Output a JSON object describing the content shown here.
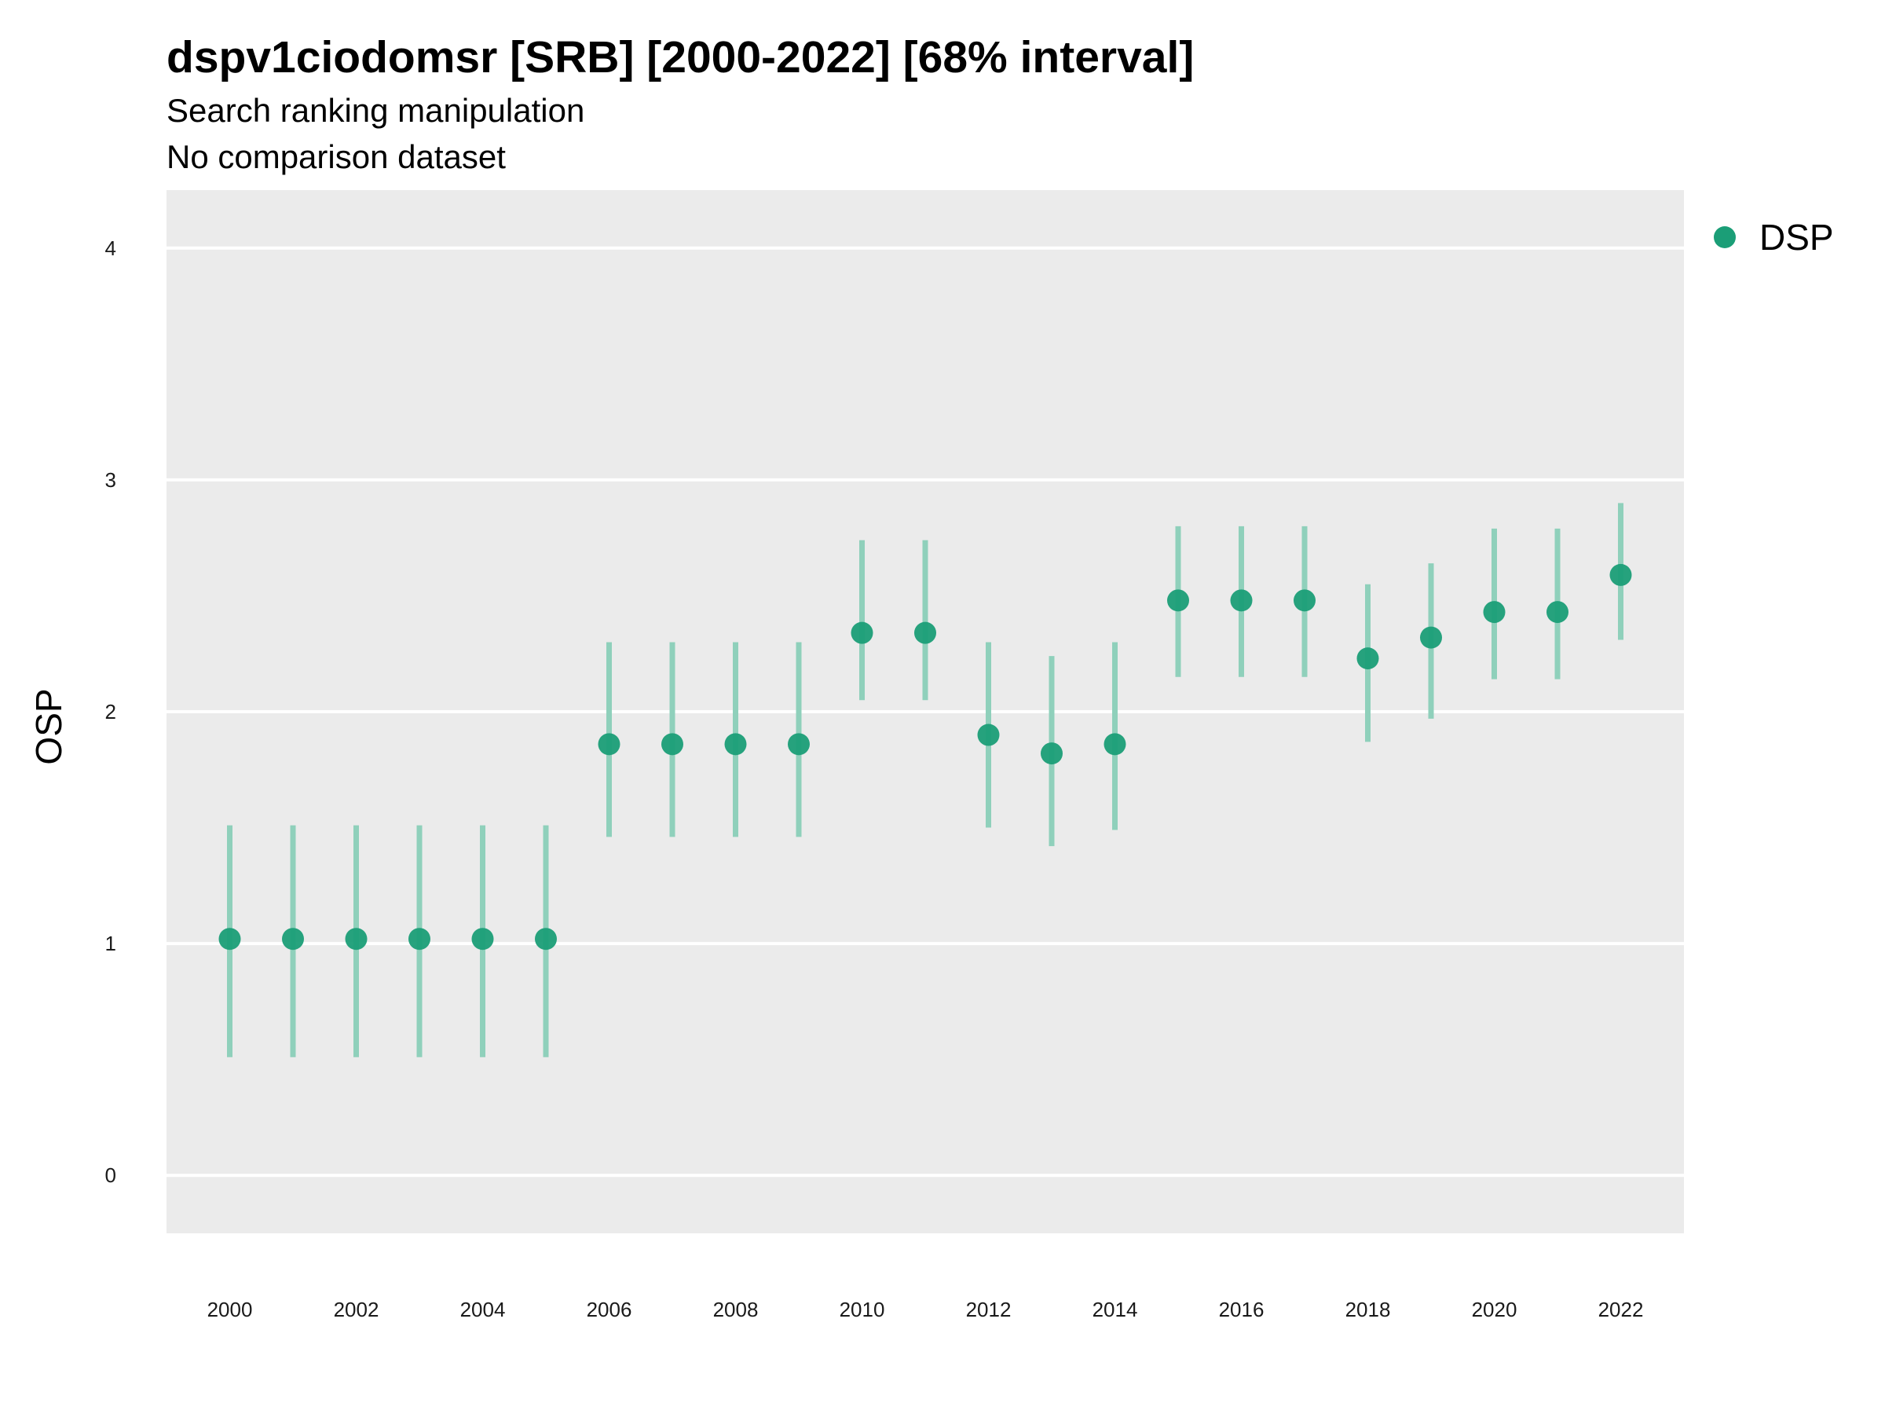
{
  "chart": {
    "title": "dspv1ciodomsr [SRB] [2000-2022] [68% interval]",
    "subtitle_line1": "Search ranking manipulation",
    "subtitle_line2": "No comparison dataset",
    "ylabel": "OSP",
    "legend_label": "DSP"
  },
  "colors": {
    "panel_background": "#ebebeb",
    "gridline": "#ffffff",
    "point": "#1b9e77",
    "interval": "#8fd0bb"
  },
  "chart_data": {
    "type": "scatter",
    "title": "dspv1ciodomsr [SRB] [2000-2022] [68% interval]",
    "subtitle": [
      "Search ranking manipulation",
      "No comparison dataset"
    ],
    "xlabel": "",
    "ylabel": "OSP",
    "xlim": [
      1999,
      2023
    ],
    "ylim": [
      -0.25,
      4.25
    ],
    "x_ticks": [
      2000,
      2002,
      2004,
      2006,
      2008,
      2010,
      2012,
      2014,
      2016,
      2018,
      2020,
      2022
    ],
    "y_ticks": [
      0,
      1,
      2,
      3,
      4
    ],
    "grid": true,
    "legend_position": "right",
    "series": [
      {
        "name": "DSP",
        "x": [
          2000,
          2001,
          2002,
          2003,
          2004,
          2005,
          2006,
          2007,
          2008,
          2009,
          2010,
          2011,
          2012,
          2013,
          2014,
          2015,
          2016,
          2017,
          2018,
          2019,
          2020,
          2021,
          2022
        ],
        "y": [
          1.02,
          1.02,
          1.02,
          1.02,
          1.02,
          1.02,
          1.86,
          1.86,
          1.86,
          1.86,
          2.34,
          2.34,
          1.9,
          1.82,
          1.86,
          2.48,
          2.48,
          2.48,
          2.23,
          2.32,
          2.43,
          2.43,
          2.59
        ],
        "lower": [
          0.51,
          0.51,
          0.51,
          0.51,
          0.51,
          0.51,
          1.46,
          1.46,
          1.46,
          1.46,
          2.05,
          2.05,
          1.5,
          1.42,
          1.49,
          2.15,
          2.15,
          2.15,
          1.87,
          1.97,
          2.14,
          2.14,
          2.31
        ],
        "upper": [
          1.51,
          1.51,
          1.51,
          1.51,
          1.51,
          1.51,
          2.3,
          2.3,
          2.3,
          2.3,
          2.74,
          2.74,
          2.3,
          2.24,
          2.3,
          2.8,
          2.8,
          2.8,
          2.55,
          2.64,
          2.79,
          2.79,
          2.9
        ]
      }
    ]
  }
}
